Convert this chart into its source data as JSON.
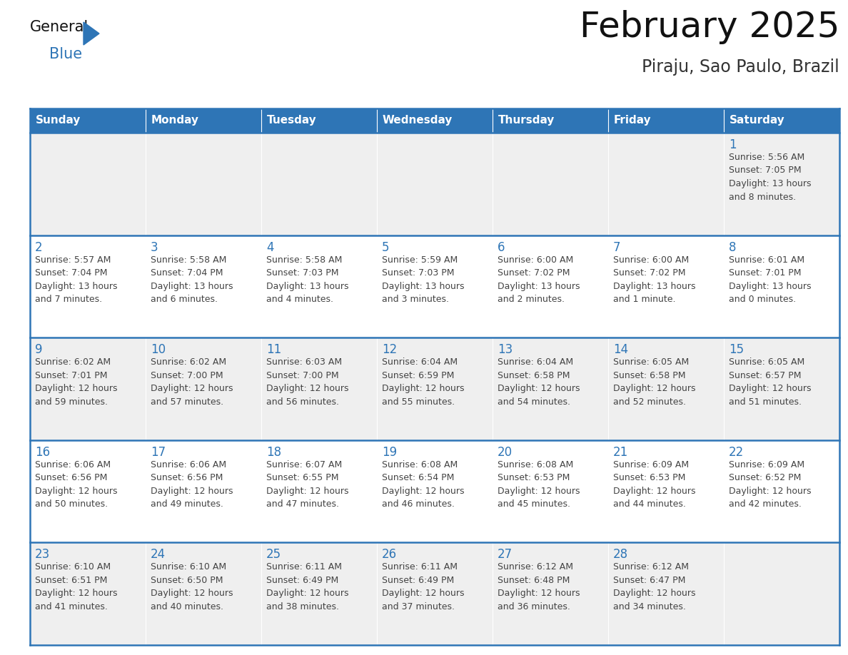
{
  "title": "February 2025",
  "subtitle": "Piraju, Sao Paulo, Brazil",
  "header_bg": "#2E75B6",
  "header_text_color": "#FFFFFF",
  "cell_bg_white": "#FFFFFF",
  "cell_bg_light": "#EFEFEF",
  "day_number_color": "#2E75B6",
  "info_text_color": "#444444",
  "border_color": "#2E75B6",
  "days_of_week": [
    "Sunday",
    "Monday",
    "Tuesday",
    "Wednesday",
    "Thursday",
    "Friday",
    "Saturday"
  ],
  "week_bg": [
    "light",
    "white",
    "light",
    "white",
    "light"
  ],
  "weeks": [
    [
      {
        "day": null,
        "info": null
      },
      {
        "day": null,
        "info": null
      },
      {
        "day": null,
        "info": null
      },
      {
        "day": null,
        "info": null
      },
      {
        "day": null,
        "info": null
      },
      {
        "day": null,
        "info": null
      },
      {
        "day": 1,
        "info": "Sunrise: 5:56 AM\nSunset: 7:05 PM\nDaylight: 13 hours\nand 8 minutes."
      }
    ],
    [
      {
        "day": 2,
        "info": "Sunrise: 5:57 AM\nSunset: 7:04 PM\nDaylight: 13 hours\nand 7 minutes."
      },
      {
        "day": 3,
        "info": "Sunrise: 5:58 AM\nSunset: 7:04 PM\nDaylight: 13 hours\nand 6 minutes."
      },
      {
        "day": 4,
        "info": "Sunrise: 5:58 AM\nSunset: 7:03 PM\nDaylight: 13 hours\nand 4 minutes."
      },
      {
        "day": 5,
        "info": "Sunrise: 5:59 AM\nSunset: 7:03 PM\nDaylight: 13 hours\nand 3 minutes."
      },
      {
        "day": 6,
        "info": "Sunrise: 6:00 AM\nSunset: 7:02 PM\nDaylight: 13 hours\nand 2 minutes."
      },
      {
        "day": 7,
        "info": "Sunrise: 6:00 AM\nSunset: 7:02 PM\nDaylight: 13 hours\nand 1 minute."
      },
      {
        "day": 8,
        "info": "Sunrise: 6:01 AM\nSunset: 7:01 PM\nDaylight: 13 hours\nand 0 minutes."
      }
    ],
    [
      {
        "day": 9,
        "info": "Sunrise: 6:02 AM\nSunset: 7:01 PM\nDaylight: 12 hours\nand 59 minutes."
      },
      {
        "day": 10,
        "info": "Sunrise: 6:02 AM\nSunset: 7:00 PM\nDaylight: 12 hours\nand 57 minutes."
      },
      {
        "day": 11,
        "info": "Sunrise: 6:03 AM\nSunset: 7:00 PM\nDaylight: 12 hours\nand 56 minutes."
      },
      {
        "day": 12,
        "info": "Sunrise: 6:04 AM\nSunset: 6:59 PM\nDaylight: 12 hours\nand 55 minutes."
      },
      {
        "day": 13,
        "info": "Sunrise: 6:04 AM\nSunset: 6:58 PM\nDaylight: 12 hours\nand 54 minutes."
      },
      {
        "day": 14,
        "info": "Sunrise: 6:05 AM\nSunset: 6:58 PM\nDaylight: 12 hours\nand 52 minutes."
      },
      {
        "day": 15,
        "info": "Sunrise: 6:05 AM\nSunset: 6:57 PM\nDaylight: 12 hours\nand 51 minutes."
      }
    ],
    [
      {
        "day": 16,
        "info": "Sunrise: 6:06 AM\nSunset: 6:56 PM\nDaylight: 12 hours\nand 50 minutes."
      },
      {
        "day": 17,
        "info": "Sunrise: 6:06 AM\nSunset: 6:56 PM\nDaylight: 12 hours\nand 49 minutes."
      },
      {
        "day": 18,
        "info": "Sunrise: 6:07 AM\nSunset: 6:55 PM\nDaylight: 12 hours\nand 47 minutes."
      },
      {
        "day": 19,
        "info": "Sunrise: 6:08 AM\nSunset: 6:54 PM\nDaylight: 12 hours\nand 46 minutes."
      },
      {
        "day": 20,
        "info": "Sunrise: 6:08 AM\nSunset: 6:53 PM\nDaylight: 12 hours\nand 45 minutes."
      },
      {
        "day": 21,
        "info": "Sunrise: 6:09 AM\nSunset: 6:53 PM\nDaylight: 12 hours\nand 44 minutes."
      },
      {
        "day": 22,
        "info": "Sunrise: 6:09 AM\nSunset: 6:52 PM\nDaylight: 12 hours\nand 42 minutes."
      }
    ],
    [
      {
        "day": 23,
        "info": "Sunrise: 6:10 AM\nSunset: 6:51 PM\nDaylight: 12 hours\nand 41 minutes."
      },
      {
        "day": 24,
        "info": "Sunrise: 6:10 AM\nSunset: 6:50 PM\nDaylight: 12 hours\nand 40 minutes."
      },
      {
        "day": 25,
        "info": "Sunrise: 6:11 AM\nSunset: 6:49 PM\nDaylight: 12 hours\nand 38 minutes."
      },
      {
        "day": 26,
        "info": "Sunrise: 6:11 AM\nSunset: 6:49 PM\nDaylight: 12 hours\nand 37 minutes."
      },
      {
        "day": 27,
        "info": "Sunrise: 6:12 AM\nSunset: 6:48 PM\nDaylight: 12 hours\nand 36 minutes."
      },
      {
        "day": 28,
        "info": "Sunrise: 6:12 AM\nSunset: 6:47 PM\nDaylight: 12 hours\nand 34 minutes."
      },
      {
        "day": null,
        "info": null
      }
    ]
  ],
  "logo_text_general": "General",
  "logo_text_blue": "Blue",
  "logo_triangle_color": "#2E75B6",
  "fig_width": 11.88,
  "fig_height": 9.18,
  "dpi": 100
}
